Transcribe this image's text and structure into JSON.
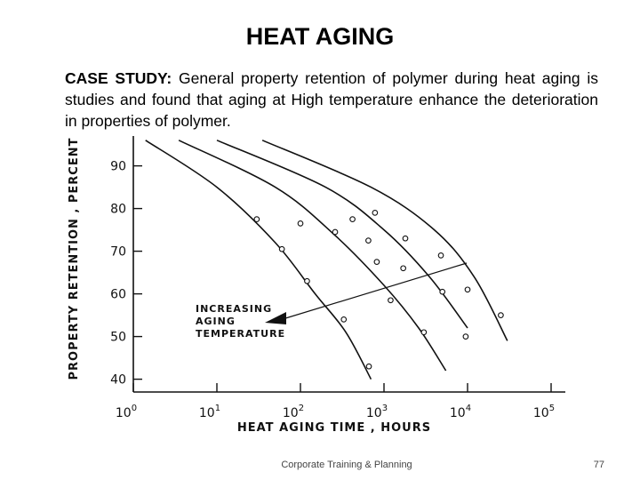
{
  "slide": {
    "title": "HEAT AGING",
    "lead": "CASE STUDY:",
    "body": " General property retention of polymer during heat aging is studies and found that aging at High temperature enhance the deterioration in properties of polymer.",
    "footer": "Corporate Training & Planning",
    "page_number": "77"
  },
  "chart_data": {
    "type": "line",
    "xlabel": "HEAT AGING TIME , HOURS",
    "ylabel": "PROPERTY RETENTION , PERCENT",
    "x_scale": "log",
    "xlim": [
      1,
      100000
    ],
    "ylim": [
      37,
      97
    ],
    "x_ticks": [
      1,
      10,
      100,
      1000,
      10000,
      100000
    ],
    "x_tick_bases": [
      "10",
      "10",
      "10",
      "10",
      "10",
      "10"
    ],
    "x_tick_exponents": [
      "0",
      "1",
      "2",
      "3",
      "4",
      "5"
    ],
    "y_ticks": [
      "90",
      "80",
      "70",
      "60",
      "50",
      "40"
    ],
    "grid": false,
    "annotation": [
      "INCREASING",
      "AGING",
      "TEMPERATURE"
    ],
    "series": [
      {
        "curve": [
          [
            1.4,
            96
          ],
          [
            10,
            85
          ],
          [
            50,
            72
          ],
          [
            150,
            60
          ],
          [
            350,
            51
          ],
          [
            700,
            40
          ]
        ],
        "points": [
          [
            30,
            77.5
          ],
          [
            60,
            70.5
          ],
          [
            120,
            63
          ],
          [
            330,
            54
          ],
          [
            660,
            43
          ]
        ]
      },
      {
        "curve": [
          [
            3.5,
            96
          ],
          [
            50,
            85
          ],
          [
            250,
            74
          ],
          [
            1000,
            62
          ],
          [
            2600,
            52
          ],
          [
            5500,
            42
          ]
        ],
        "points": [
          [
            100,
            76.5
          ],
          [
            260,
            74.5
          ],
          [
            820,
            67.5
          ],
          [
            1200,
            58.5
          ],
          [
            3000,
            51
          ]
        ]
      },
      {
        "curve": [
          [
            10,
            96
          ],
          [
            200,
            85
          ],
          [
            1000,
            75
          ],
          [
            3500,
            64
          ],
          [
            10000,
            52
          ]
        ],
        "points": [
          [
            420,
            77.5
          ],
          [
            650,
            72.5
          ],
          [
            1700,
            66
          ],
          [
            5000,
            60.5
          ],
          [
            9500,
            50
          ]
        ]
      },
      {
        "curve": [
          [
            35,
            96
          ],
          [
            700,
            85
          ],
          [
            4000,
            75
          ],
          [
            12000,
            64
          ],
          [
            30000,
            49
          ]
        ],
        "points": [
          [
            780,
            79
          ],
          [
            1800,
            73
          ],
          [
            4800,
            69
          ],
          [
            10000,
            61
          ],
          [
            25000,
            55
          ]
        ]
      }
    ]
  }
}
